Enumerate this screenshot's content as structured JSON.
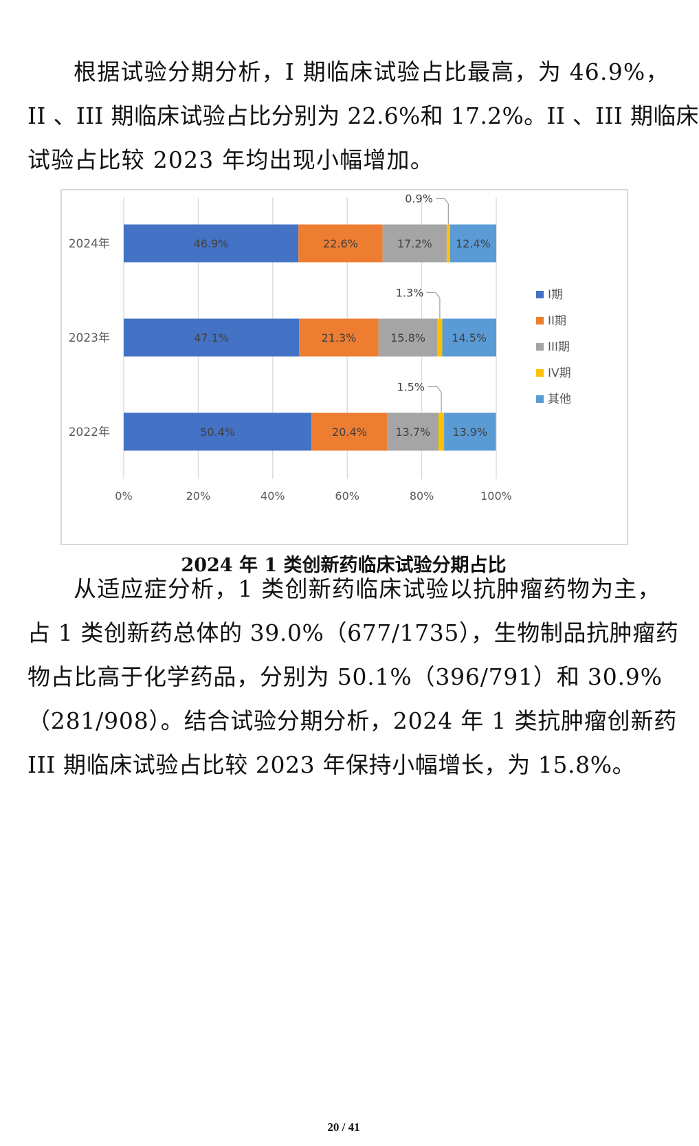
{
  "paragraph1": {
    "lines": [
      "根据试验分期分析，I 期临床试验占比最高，为 46.9%，",
      "II 、III 期临床试验占比分别为 22.6%和 17.2%。II 、III 期临床",
      "试验占比较 2023 年均出现小幅增加。"
    ]
  },
  "figure_caption": "2024 年 1 类创新药临床试验分期占比",
  "paragraph2": {
    "lines": [
      "从适应症分析，1 类创新药临床试验以抗肿瘤药物为主，",
      "占 1 类创新药总体的 39.0%（677/1735），生物制品抗肿瘤药",
      "物占比高于化学药品，分别为 50.1%（396/791）和 30.9%",
      "（281/908）。结合试验分期分析，2024 年 1 类抗肿瘤创新药",
      "III 期临床试验占比较 2023 年保持小幅增长，为 15.8%。"
    ]
  },
  "page_number": "20 / 41",
  "chart_data": {
    "type": "bar",
    "orientation": "horizontal",
    "stacked": "percent",
    "categories": [
      "2024年",
      "2023年",
      "2022年"
    ],
    "series": [
      {
        "name": "I期",
        "color": "#4472C4",
        "values": [
          46.9,
          47.1,
          50.4
        ],
        "labels": [
          "46.9%",
          "47.1%",
          "50.4%"
        ]
      },
      {
        "name": "II期",
        "color": "#ED7D31",
        "values": [
          22.6,
          21.3,
          20.4
        ],
        "labels": [
          "22.6%",
          "21.3%",
          "20.4%"
        ]
      },
      {
        "name": "III期",
        "color": "#A5A5A5",
        "values": [
          17.2,
          15.8,
          13.7
        ],
        "labels": [
          "17.2%",
          "15.8%",
          "13.7%"
        ]
      },
      {
        "name": "IV期",
        "color": "#FFC000",
        "values": [
          0.9,
          1.3,
          1.5
        ],
        "labels": [
          "0.9%",
          "1.3%",
          "1.5%"
        ]
      },
      {
        "name": "其他",
        "color": "#5B9BD5",
        "values": [
          12.4,
          14.5,
          13.9
        ],
        "labels": [
          "12.4%",
          "14.5%",
          "13.9%"
        ]
      }
    ],
    "xlim": [
      0,
      100
    ],
    "x_ticks": [
      "0%",
      "20%",
      "40%",
      "60%",
      "80%",
      "100%"
    ],
    "grid": "vertical",
    "legend": "right"
  }
}
